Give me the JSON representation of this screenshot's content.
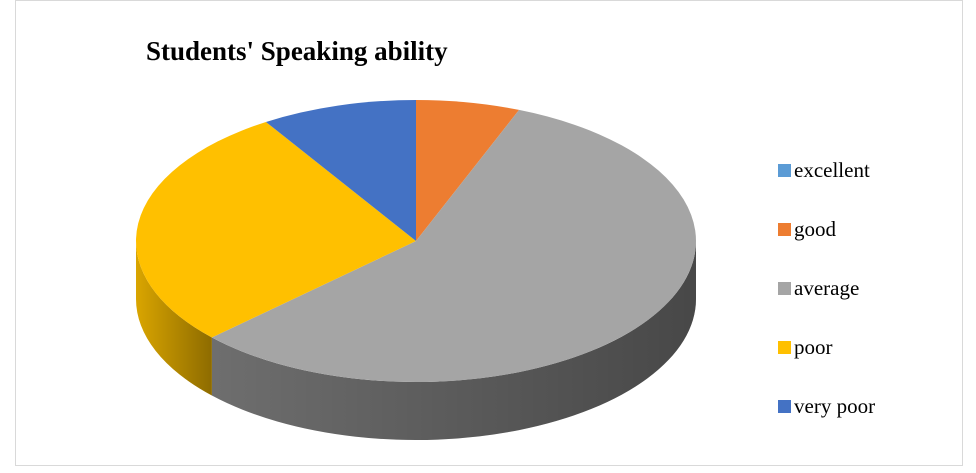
{
  "chart_data": {
    "type": "pie",
    "title": "Students' Speaking ability",
    "categories": [
      "excellent",
      "good",
      "average",
      "poor",
      "very poor"
    ],
    "values": [
      0,
      6,
      57,
      28,
      9
    ],
    "colors": [
      "#5b9bd5",
      "#ed7d31",
      "#a5a5a5",
      "#ffc000",
      "#4472c4"
    ],
    "side_colors": [
      "#3c6f9e",
      "#b15a1e",
      "#6e6e6e",
      "#d9a500",
      "#2f5597"
    ],
    "legend_position": "right",
    "style": "3d"
  }
}
